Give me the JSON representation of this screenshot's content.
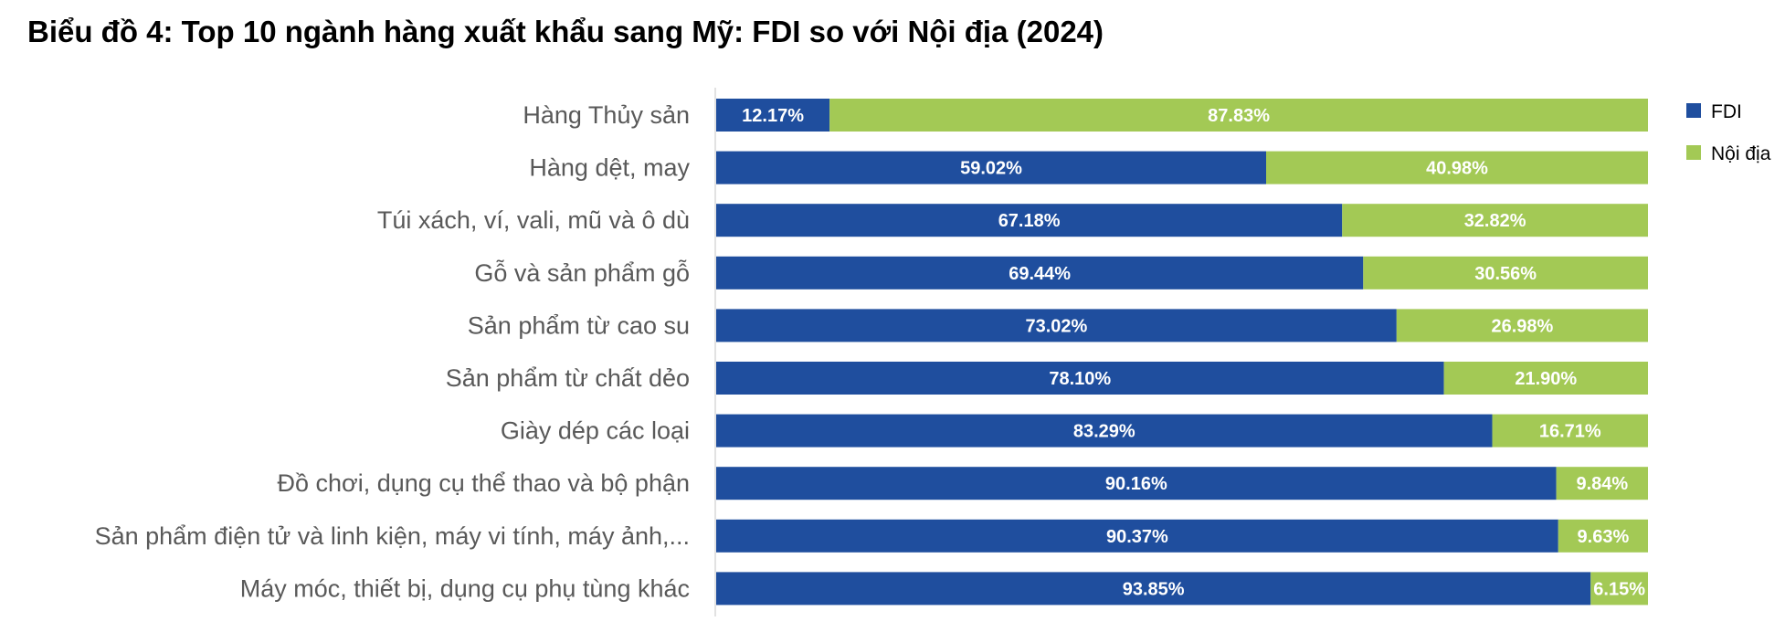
{
  "chart_data": {
    "type": "bar",
    "orientation": "horizontal",
    "stacked": true,
    "title": "Biểu đồ 4: Top 10 ngành hàng xuất khẩu sang Mỹ: FDI so với Nội địa (2024)",
    "categories": [
      "Hàng Thủy sản",
      "Hàng dệt, may",
      "Túi xách, ví, vali, mũ và ô dù",
      "Gỗ và sản phẩm gỗ",
      "Sản phẩm từ cao su",
      "Sản phẩm từ chất dẻo",
      "Giày dép các loại",
      "Đồ chơi, dụng cụ thể thao và bộ phận",
      "Sản phẩm điện tử và linh kiện, máy vi tính, máy ảnh,...",
      "Máy móc, thiết bị, dụng cụ phụ tùng khác"
    ],
    "series": [
      {
        "name": "FDI",
        "color": "#1F4E9E",
        "values": [
          12.17,
          59.02,
          67.18,
          69.44,
          73.02,
          78.1,
          83.29,
          90.16,
          90.37,
          93.85
        ],
        "labels": [
          "12.17%",
          "59.02%",
          "67.18%",
          "69.44%",
          "73.02%",
          "78.10%",
          "83.29%",
          "90.16%",
          "90.37%",
          "93.85%"
        ]
      },
      {
        "name": "Nội địa",
        "color": "#A3C955",
        "values": [
          87.83,
          40.98,
          32.82,
          30.56,
          26.98,
          21.9,
          16.71,
          9.84,
          9.63,
          6.15
        ],
        "labels": [
          "87.83%",
          "40.98%",
          "32.82%",
          "30.56%",
          "26.98%",
          "21.90%",
          "16.71%",
          "9.84%",
          "9.63%",
          "6.15%"
        ]
      }
    ],
    "xlim": [
      0,
      100
    ],
    "legend": "right",
    "grid": false
  }
}
